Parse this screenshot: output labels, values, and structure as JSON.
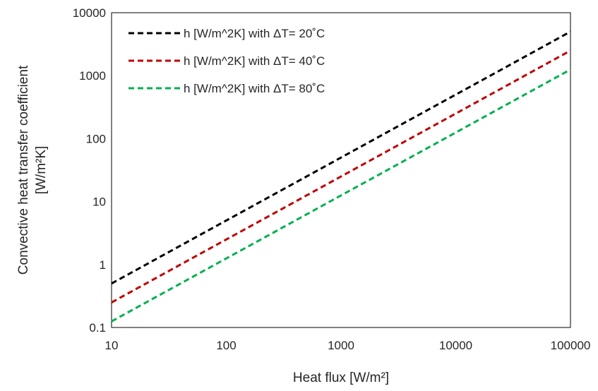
{
  "chart_data": {
    "type": "line",
    "xscale": "log",
    "yscale": "log",
    "xlim": [
      10,
      100000
    ],
    "ylim": [
      0.1,
      10000
    ],
    "x_ticks": [
      "10",
      "100",
      "1000",
      "10000",
      "100000"
    ],
    "y_ticks": [
      "0.1",
      "1",
      "10",
      "100",
      "1000",
      "10000"
    ],
    "xlabel": "Heat flux [W/m²]",
    "ylabel_line1": "Convective heat transfer coefficient",
    "ylabel_line2": "[W/m²K]",
    "grid": false,
    "legend_position": "top-left",
    "series": [
      {
        "name": "h [W/m^2K] with ΔT= 20˚C",
        "color": "#000000",
        "dash": "dashed",
        "x": [
          10,
          100000
        ],
        "y": [
          0.5,
          5000
        ]
      },
      {
        "name": "h [W/m^2K] with ΔT= 40˚C",
        "color": "#c00000",
        "dash": "dashed",
        "x": [
          10,
          100000
        ],
        "y": [
          0.25,
          2500
        ]
      },
      {
        "name": "h [W/m^2K] with ΔT= 80˚C",
        "color": "#00b050",
        "dash": "dashed",
        "x": [
          10,
          100000
        ],
        "y": [
          0.125,
          1250
        ]
      }
    ]
  }
}
